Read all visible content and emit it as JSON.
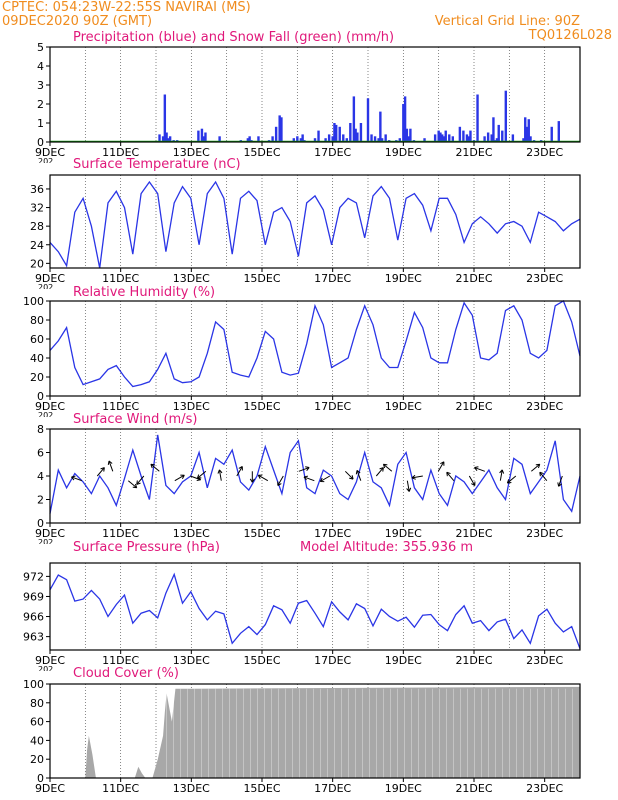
{
  "header": {
    "line1_left": "CPTEC:   054:23W-22:55S   NAVIRAI (MS)",
    "line2_left": "09DEC2020 90Z (GMT)",
    "line1_right": "Vertical Grid Line: 90Z",
    "line2_right": "TQ0126L028"
  },
  "colors": {
    "header": "#f08c1e",
    "title": "#e0187a",
    "series": "#2a35e6",
    "snow": "#14a014",
    "cloud": "#a8a8a8",
    "wind_arrow": "#000000"
  },
  "x_axis": {
    "tick_labels": [
      "9DEC",
      "11DEC",
      "13DEC",
      "15DEC",
      "17DEC",
      "19DEC",
      "21DEC",
      "23DEC"
    ],
    "tick_positions": [
      0,
      2,
      4,
      6,
      8,
      10,
      12,
      14
    ],
    "range": [
      0,
      15
    ],
    "vertical_grid_days": [
      1,
      2,
      3,
      4,
      5,
      6,
      7,
      8,
      9,
      10,
      11,
      12,
      13,
      14
    ],
    "year_fragment": "202"
  },
  "chart_data": [
    {
      "type": "bar",
      "title": "Precipitation (blue) and Snow Fall (green) (mm/h)",
      "ylim": [
        0,
        5
      ],
      "yticks": [
        0,
        1,
        2,
        3,
        4,
        5
      ],
      "series": [
        {
          "name": "Precipitation (blue)",
          "color": "#2a35e6",
          "x": [
            3.1,
            3.2,
            3.25,
            3.3,
            3.35,
            3.4,
            3.5,
            3.6,
            4.2,
            4.3,
            4.35,
            4.4,
            4.8,
            5.4,
            5.6,
            5.65,
            5.7,
            5.9,
            6.2,
            6.3,
            6.4,
            6.5,
            6.55,
            6.9,
            7.0,
            7.1,
            7.15,
            7.2,
            7.5,
            7.6,
            7.8,
            7.9,
            8.0,
            8.05,
            8.1,
            8.2,
            8.3,
            8.4,
            8.5,
            8.6,
            8.65,
            8.7,
            8.8,
            9.0,
            9.1,
            9.2,
            9.3,
            9.35,
            9.4,
            9.5,
            9.6,
            9.8,
            9.9,
            10.0,
            10.05,
            10.1,
            10.15,
            10.2,
            10.3,
            10.6,
            10.9,
            11.0,
            11.05,
            11.1,
            11.15,
            11.2,
            11.3,
            11.4,
            11.6,
            11.7,
            11.8,
            11.85,
            11.9,
            12.0,
            12.1,
            12.3,
            12.4,
            12.5,
            12.55,
            12.6,
            12.65,
            12.7,
            12.8,
            12.9,
            13.1,
            13.4,
            13.45,
            13.5,
            13.55,
            13.6,
            13.7,
            13.9,
            14.2,
            14.4
          ],
          "values": [
            0.4,
            0.3,
            2.5,
            0.5,
            0.2,
            0.3,
            0.1,
            0.1,
            0.6,
            0.7,
            0.3,
            0.5,
            0.3,
            0.1,
            0.2,
            0.3,
            0.1,
            0.3,
            0.1,
            0.3,
            0.8,
            1.4,
            1.3,
            0.2,
            0.3,
            0.2,
            0.4,
            0.1,
            0.2,
            0.6,
            0.2,
            0.4,
            0.3,
            1.0,
            0.9,
            0.8,
            0.4,
            0.2,
            1.0,
            2.4,
            0.7,
            0.5,
            1.0,
            2.3,
            0.4,
            0.3,
            0.2,
            1.6,
            0.2,
            0.4,
            0.1,
            0.1,
            0.2,
            2.0,
            2.4,
            0.7,
            0.3,
            0.7,
            0.1,
            0.2,
            0.4,
            0.6,
            0.5,
            0.4,
            0.3,
            0.6,
            0.4,
            0.3,
            0.8,
            0.6,
            0.4,
            0.3,
            0.6,
            0.1,
            2.5,
            0.3,
            0.5,
            0.4,
            1.3,
            0.1,
            0.2,
            0.9,
            0.6,
            2.7,
            0.4,
            0.2,
            1.3,
            0.8,
            1.2,
            0.3,
            0.1,
            0.1,
            0.8,
            1.1
          ]
        },
        {
          "name": "Snow Fall (green)",
          "color": "#14a014",
          "constant": 0
        }
      ]
    },
    {
      "type": "line",
      "title": "Surface Temperature (nC)",
      "ylim": [
        19,
        39
      ],
      "yticks": [
        20,
        24,
        28,
        32,
        36
      ],
      "series": [
        {
          "name": "",
          "color": "#2a35e6",
          "values": [
            24.5,
            22.5,
            19.5,
            31.0,
            34.0,
            28.0,
            19.0,
            33.0,
            35.5,
            32.0,
            22.0,
            35.0,
            37.5,
            35.0,
            22.5,
            33.0,
            36.5,
            34.0,
            24.0,
            35.0,
            37.5,
            34.0,
            22.0,
            34.0,
            35.5,
            33.5,
            24.0,
            31.0,
            32.0,
            29.0,
            21.5,
            33.0,
            34.5,
            31.5,
            24.0,
            32.0,
            34.0,
            33.0,
            25.5,
            34.5,
            36.5,
            34.0,
            25.0,
            34.0,
            35.0,
            32.5,
            27.0,
            34.0,
            34.0,
            30.5,
            24.5,
            28.5,
            30.0,
            28.5,
            26.5,
            28.5,
            29.0,
            28.0,
            24.5,
            31.0,
            30.0,
            29.0,
            27.0,
            28.5,
            29.5
          ]
        }
      ]
    },
    {
      "type": "line",
      "title": "Relative Humidity (%)",
      "ylim": [
        0,
        100
      ],
      "yticks": [
        0,
        20,
        40,
        60,
        80,
        100
      ],
      "series": [
        {
          "name": "",
          "color": "#2a35e6",
          "values": [
            48,
            58,
            72,
            30,
            12,
            15,
            18,
            28,
            32,
            20,
            10,
            12,
            15,
            28,
            45,
            18,
            14,
            15,
            20,
            45,
            78,
            70,
            25,
            22,
            20,
            40,
            68,
            60,
            25,
            22,
            24,
            55,
            95,
            75,
            30,
            35,
            40,
            70,
            95,
            75,
            40,
            30,
            30,
            58,
            88,
            72,
            40,
            35,
            35,
            70,
            98,
            85,
            40,
            38,
            45,
            90,
            95,
            80,
            45,
            40,
            48,
            95,
            100,
            78,
            42
          ]
        }
      ]
    },
    {
      "type": "line",
      "title": "Surface Wind (m/s)",
      "ylim": [
        0,
        8
      ],
      "yticks": [
        0,
        2,
        4,
        6,
        8
      ],
      "series": [
        {
          "name": "",
          "color": "#2a35e6",
          "values": [
            0.8,
            4.5,
            3.0,
            4.2,
            3.5,
            2.5,
            4.0,
            3.0,
            1.5,
            3.8,
            6.2,
            4.0,
            2.0,
            7.5,
            3.2,
            2.5,
            3.5,
            4.0,
            6.0,
            3.0,
            5.5,
            5.0,
            6.2,
            3.5,
            2.8,
            4.0,
            6.5,
            4.5,
            2.5,
            6.0,
            7.0,
            3.0,
            2.5,
            4.5,
            4.0,
            2.5,
            2.0,
            3.5,
            6.0,
            3.5,
            3.0,
            1.5,
            5.0,
            6.0,
            3.0,
            2.0,
            4.5,
            2.5,
            1.5,
            4.0,
            3.5,
            2.5,
            3.5,
            4.5,
            3.0,
            2.0,
            5.5,
            5.0,
            2.5,
            3.5,
            4.5,
            7.0,
            2.0,
            1.0,
            4.0
          ]
        }
      ]
    },
    {
      "type": "line",
      "title": "Surface Pressure (hPa)",
      "annotation": "Model Altitude: 355.936  m",
      "ylim": [
        961,
        974
      ],
      "yticks": [
        963,
        966,
        969,
        972
      ],
      "series": [
        {
          "name": "",
          "color": "#2a35e6",
          "values": [
            970.0,
            972.2,
            971.5,
            968.3,
            968.6,
            969.9,
            968.6,
            966.0,
            967.8,
            969.2,
            965.0,
            966.5,
            966.9,
            965.8,
            969.5,
            972.3,
            968.0,
            969.7,
            967.2,
            965.5,
            966.8,
            966.4,
            962.0,
            963.5,
            964.5,
            963.3,
            964.8,
            967.6,
            967.0,
            965.0,
            968.0,
            968.4,
            966.5,
            964.5,
            968.2,
            966.7,
            965.5,
            967.9,
            967.2,
            964.6,
            967.1,
            966.0,
            965.3,
            965.9,
            964.4,
            966.2,
            966.3,
            964.8,
            963.9,
            966.3,
            967.6,
            965.0,
            965.4,
            963.9,
            965.2,
            965.6,
            962.7,
            964.0,
            962.0,
            966.1,
            967.1,
            965.0,
            963.7,
            964.5,
            961.2
          ]
        }
      ]
    },
    {
      "type": "area",
      "title": "Cloud Cover (%)",
      "ylim": [
        0,
        100
      ],
      "yticks": [
        0,
        20,
        40,
        60,
        80,
        100
      ],
      "series": [
        {
          "name": "",
          "color": "#a8a8a8",
          "x": [
            0,
            0.6,
            1.0,
            1.05,
            1.1,
            1.2,
            1.3,
            2.0,
            2.4,
            2.5,
            2.6,
            2.7,
            2.9,
            3.05,
            3.2,
            3.25,
            3.3,
            3.45,
            3.55,
            3.75,
            4.0,
            15.0
          ],
          "values": [
            0,
            0,
            0,
            30,
            45,
            25,
            0,
            0,
            0,
            12,
            5,
            0,
            0,
            20,
            45,
            70,
            90,
            60,
            95,
            95,
            95,
            97
          ]
        }
      ]
    }
  ]
}
